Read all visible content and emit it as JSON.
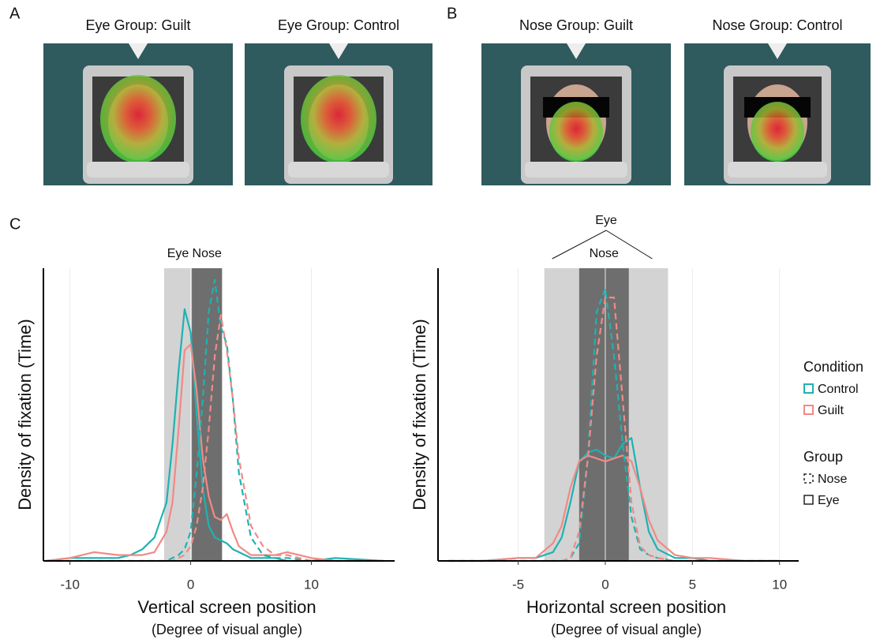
{
  "panel_labels": [
    "A",
    "B",
    "C"
  ],
  "photos": [
    {
      "title": "Eye Group: Guilt"
    },
    {
      "title": "Eye Group: Control"
    },
    {
      "title": "Nose Group: Guilt"
    },
    {
      "title": "Nose Group: Control"
    }
  ],
  "legend": {
    "condition_title": "Condition",
    "conditions": [
      {
        "name": "Control",
        "color": "#1fb2b2"
      },
      {
        "name": "Guilt",
        "color": "#f08a86"
      }
    ],
    "group_title": "Group",
    "groups": [
      {
        "name": "Nose",
        "dash": true
      },
      {
        "name": "Eye",
        "dash": false
      }
    ]
  },
  "chart_data": [
    {
      "type": "line",
      "xlabel": "Vertical screen position",
      "xlabel_sub": "(Degree of visual angle)",
      "ylabel": "Density of fixation (Time)",
      "xlim": [
        -12.2,
        16.9
      ],
      "ylim": [
        0,
        1
      ],
      "xticks": [
        -10,
        0,
        10
      ],
      "grid": true,
      "bands": [
        {
          "label": "Eye",
          "range": [
            -2.2,
            2.6
          ],
          "color": "#d3d3d3"
        },
        {
          "label": "Nose",
          "range": [
            0.1,
            2.6
          ],
          "color": "#6e6e6e"
        }
      ],
      "x": [
        -12,
        -10,
        -8,
        -6,
        -5,
        -4,
        -3,
        -2,
        -1.5,
        -1,
        -0.5,
        0,
        0.5,
        1,
        1.5,
        2,
        2.5,
        3,
        3.5,
        4,
        5,
        6,
        7,
        8,
        10,
        12,
        16
      ],
      "series": [
        {
          "color": "#1fb2b2",
          "dash": false,
          "values": [
            0,
            0.01,
            0.01,
            0.01,
            0.02,
            0.04,
            0.08,
            0.2,
            0.4,
            0.65,
            0.86,
            0.78,
            0.5,
            0.25,
            0.12,
            0.08,
            0.07,
            0.06,
            0.04,
            0.03,
            0.01,
            0.01,
            0.01,
            0,
            0,
            0.01,
            0
          ]
        },
        {
          "color": "#f08a86",
          "dash": false,
          "values": [
            0,
            0.01,
            0.03,
            0.02,
            0.02,
            0.02,
            0.03,
            0.1,
            0.2,
            0.45,
            0.72,
            0.74,
            0.58,
            0.35,
            0.22,
            0.15,
            0.14,
            0.16,
            0.1,
            0.05,
            0.02,
            0.02,
            0.02,
            0.03,
            0.01,
            0,
            0
          ]
        },
        {
          "color": "#1fb2b2",
          "dash": true,
          "values": [
            0,
            0,
            0,
            0,
            0,
            0,
            0,
            0,
            0.01,
            0.02,
            0.04,
            0.1,
            0.3,
            0.55,
            0.85,
            0.96,
            0.8,
            0.74,
            0.55,
            0.3,
            0.08,
            0.02,
            0.01,
            0.01,
            0,
            0,
            0
          ]
        },
        {
          "color": "#f08a86",
          "dash": true,
          "values": [
            0,
            0,
            0,
            0,
            0,
            0,
            0,
            0,
            0,
            0.01,
            0.02,
            0.05,
            0.12,
            0.25,
            0.45,
            0.7,
            0.84,
            0.72,
            0.55,
            0.35,
            0.12,
            0.05,
            0.02,
            0.02,
            0,
            0,
            0
          ]
        }
      ]
    },
    {
      "type": "line",
      "xlabel": "Horizontal screen position",
      "xlabel_sub": "(Degree of visual angle)",
      "ylabel": "Density of fixation (Time)",
      "xlim": [
        -9.6,
        11.1
      ],
      "ylim": [
        0,
        1
      ],
      "xticks": [
        -5,
        0,
        5,
        10
      ],
      "grid": true,
      "bands": [
        {
          "label": "Eye",
          "range": [
            -3.5,
            3.6
          ],
          "color": "#d3d3d3"
        },
        {
          "label": "Nose",
          "range": [
            -1.5,
            1.35
          ],
          "color": "#6e6e6e"
        }
      ],
      "x": [
        -9,
        -7,
        -5,
        -4,
        -3,
        -2.5,
        -2,
        -1.5,
        -1,
        -0.5,
        0,
        0.5,
        1,
        1.5,
        2,
        2.5,
        3,
        4,
        5,
        6,
        8,
        10
      ],
      "series": [
        {
          "color": "#1fb2b2",
          "dash": false,
          "values": [
            0,
            0,
            0.01,
            0.01,
            0.03,
            0.08,
            0.2,
            0.34,
            0.37,
            0.38,
            0.36,
            0.35,
            0.4,
            0.42,
            0.25,
            0.1,
            0.04,
            0.01,
            0.01,
            0,
            0,
            0
          ]
        },
        {
          "color": "#f08a86",
          "dash": false,
          "values": [
            0,
            0,
            0.01,
            0.01,
            0.06,
            0.12,
            0.25,
            0.34,
            0.36,
            0.35,
            0.34,
            0.35,
            0.36,
            0.34,
            0.25,
            0.14,
            0.07,
            0.02,
            0.01,
            0.01,
            0,
            0
          ]
        },
        {
          "color": "#1fb2b2",
          "dash": true,
          "values": [
            0,
            0,
            0,
            0,
            0,
            0,
            0.01,
            0.06,
            0.35,
            0.85,
            0.93,
            0.7,
            0.4,
            0.15,
            0.04,
            0.02,
            0.01,
            0,
            0,
            0,
            0,
            0
          ]
        },
        {
          "color": "#f08a86",
          "dash": true,
          "values": [
            0,
            0,
            0,
            0,
            0,
            0,
            0.01,
            0.1,
            0.35,
            0.7,
            0.9,
            0.9,
            0.55,
            0.2,
            0.05,
            0.02,
            0.01,
            0,
            0,
            0,
            0,
            0
          ]
        }
      ]
    }
  ]
}
